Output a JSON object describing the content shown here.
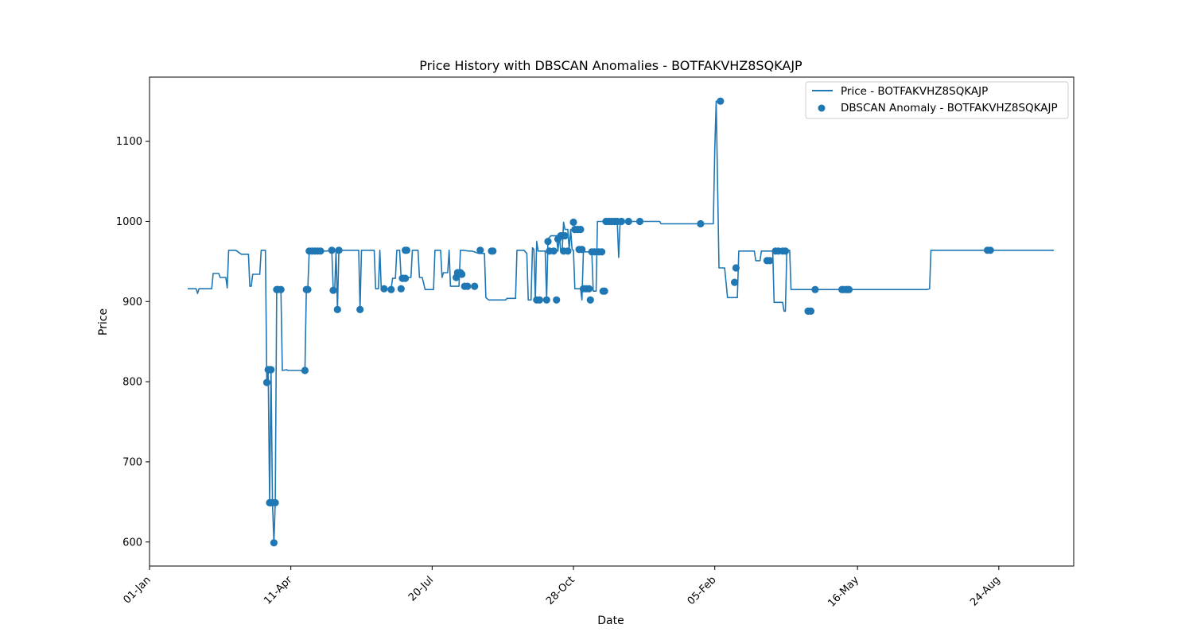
{
  "chart_data": {
    "type": "line",
    "title": "Price History with DBSCAN Anomalies - BOTFAKVHZ8SQKAJP",
    "xlabel": "Date",
    "ylabel": "Price",
    "x_axis_type": "date",
    "xlim": [
      "2023-01-01",
      "2024-10-16"
    ],
    "ylim": [
      570,
      1180
    ],
    "x_ticks": [
      {
        "date": "2023-01-01",
        "label": "01-Jan"
      },
      {
        "date": "2023-04-11",
        "label": "11-Apr"
      },
      {
        "date": "2023-07-20",
        "label": "20-Jul"
      },
      {
        "date": "2023-10-28",
        "label": "28-Oct"
      },
      {
        "date": "2024-02-05",
        "label": "05-Feb"
      },
      {
        "date": "2024-05-16",
        "label": "16-May"
      },
      {
        "date": "2024-08-24",
        "label": "24-Aug"
      }
    ],
    "y_ticks": [
      600,
      700,
      800,
      900,
      1000,
      1100
    ],
    "legend_position": "top-right",
    "grid": false,
    "colors": {
      "series": "#1f77b4"
    },
    "series": [
      {
        "name": "Price - BOTFAKVHZ8SQKAJP",
        "kind": "line",
        "points": [
          [
            "2023-01-28",
            916
          ],
          [
            "2023-02-03",
            916
          ],
          [
            "2023-02-04",
            910
          ],
          [
            "2023-02-05",
            916
          ],
          [
            "2023-02-14",
            916
          ],
          [
            "2023-02-15",
            935
          ],
          [
            "2023-02-19",
            935
          ],
          [
            "2023-02-20",
            930
          ],
          [
            "2023-02-24",
            930
          ],
          [
            "2023-02-25",
            917
          ],
          [
            "2023-02-26",
            964
          ],
          [
            "2023-03-03",
            964
          ],
          [
            "2023-03-07",
            959
          ],
          [
            "2023-03-12",
            959
          ],
          [
            "2023-03-13",
            919
          ],
          [
            "2023-03-14",
            919
          ],
          [
            "2023-03-15",
            934
          ],
          [
            "2023-03-20",
            934
          ],
          [
            "2023-03-21",
            964
          ],
          [
            "2023-03-24",
            964
          ],
          [
            "2023-03-25",
            799
          ],
          [
            "2023-03-26",
            815
          ],
          [
            "2023-03-27",
            649
          ],
          [
            "2023-03-28",
            815
          ],
          [
            "2023-03-29",
            649
          ],
          [
            "2023-03-30",
            599
          ],
          [
            "2023-03-31",
            649
          ],
          [
            "2023-04-01",
            915
          ],
          [
            "2023-04-04",
            915
          ],
          [
            "2023-04-05",
            814
          ],
          [
            "2023-04-08",
            815
          ],
          [
            "2023-04-09",
            814
          ],
          [
            "2023-04-15",
            814
          ],
          [
            "2023-04-18",
            814
          ],
          [
            "2023-04-19",
            813
          ],
          [
            "2023-04-21",
            814
          ],
          [
            "2023-04-22",
            915
          ],
          [
            "2023-04-23",
            915
          ],
          [
            "2023-04-24",
            963
          ],
          [
            "2023-04-30",
            963
          ],
          [
            "2023-05-06",
            963
          ],
          [
            "2023-05-10",
            964
          ],
          [
            "2023-05-11",
            914
          ],
          [
            "2023-05-12",
            914
          ],
          [
            "2023-05-13",
            964
          ],
          [
            "2023-05-14",
            890
          ],
          [
            "2023-05-15",
            964
          ],
          [
            "2023-05-29",
            964
          ],
          [
            "2023-05-30",
            890
          ],
          [
            "2023-05-31",
            964
          ],
          [
            "2023-06-09",
            964
          ],
          [
            "2023-06-10",
            916
          ],
          [
            "2023-06-12",
            916
          ],
          [
            "2023-06-13",
            964
          ],
          [
            "2023-06-14",
            915
          ],
          [
            "2023-06-21",
            916
          ],
          [
            "2023-06-22",
            929
          ],
          [
            "2023-06-24",
            929
          ],
          [
            "2023-06-25",
            964
          ],
          [
            "2023-06-27",
            964
          ],
          [
            "2023-06-28",
            930
          ],
          [
            "2023-07-05",
            930
          ],
          [
            "2023-07-06",
            964
          ],
          [
            "2023-07-10",
            964
          ],
          [
            "2023-07-11",
            930
          ],
          [
            "2023-07-13",
            930
          ],
          [
            "2023-07-15",
            915
          ],
          [
            "2023-07-21",
            915
          ],
          [
            "2023-07-22",
            964
          ],
          [
            "2023-07-26",
            964
          ],
          [
            "2023-07-27",
            930
          ],
          [
            "2023-07-28",
            936
          ],
          [
            "2023-07-31",
            936
          ],
          [
            "2023-08-01",
            964
          ],
          [
            "2023-08-02",
            919
          ],
          [
            "2023-08-05",
            919
          ],
          [
            "2023-08-08",
            919
          ],
          [
            "2023-08-09",
            964
          ],
          [
            "2023-08-11",
            964
          ],
          [
            "2023-08-15",
            963
          ],
          [
            "2023-08-17",
            963
          ],
          [
            "2023-08-22",
            960
          ],
          [
            "2023-08-26",
            960
          ],
          [
            "2023-08-27",
            905
          ],
          [
            "2023-08-29",
            902
          ],
          [
            "2023-09-10",
            902
          ],
          [
            "2023-09-11",
            904
          ],
          [
            "2023-09-17",
            904
          ],
          [
            "2023-09-18",
            964
          ],
          [
            "2023-09-23",
            964
          ],
          [
            "2023-09-25",
            960
          ],
          [
            "2023-09-26",
            902
          ],
          [
            "2023-09-28",
            902
          ],
          [
            "2023-09-29",
            967
          ],
          [
            "2023-09-30",
            965
          ],
          [
            "2023-10-01",
            902
          ],
          [
            "2023-10-02",
            975
          ],
          [
            "2023-10-03",
            963
          ],
          [
            "2023-10-08",
            963
          ],
          [
            "2023-10-09",
            902
          ],
          [
            "2023-10-10",
            978
          ],
          [
            "2023-10-12",
            982
          ],
          [
            "2023-10-16",
            982
          ],
          [
            "2023-10-17",
            963
          ],
          [
            "2023-10-18",
            982
          ],
          [
            "2023-10-19",
            963
          ],
          [
            "2023-10-20",
            963
          ],
          [
            "2023-10-21",
            999
          ],
          [
            "2023-10-22",
            990
          ],
          [
            "2023-10-24",
            990
          ],
          [
            "2023-10-25",
            965
          ],
          [
            "2023-10-26",
            990
          ],
          [
            "2023-10-27",
            965
          ],
          [
            "2023-10-28",
            964
          ],
          [
            "2023-10-29",
            916
          ],
          [
            "2023-11-02",
            916
          ],
          [
            "2023-11-03",
            902
          ],
          [
            "2023-11-04",
            962
          ],
          [
            "2023-11-05",
            962
          ],
          [
            "2023-11-10",
            962
          ],
          [
            "2023-11-11",
            913
          ],
          [
            "2023-11-13",
            913
          ],
          [
            "2023-11-14",
            1000
          ],
          [
            "2023-11-24",
            1000
          ],
          [
            "2023-11-25",
            1000
          ],
          [
            "2023-11-28",
            1000
          ],
          [
            "2023-11-29",
            955
          ],
          [
            "2023-11-30",
            1000
          ],
          [
            "2023-12-05",
            1000
          ],
          [
            "2023-12-28",
            1000
          ],
          [
            "2023-12-29",
            997
          ],
          [
            "2024-01-31",
            997
          ],
          [
            "2024-02-02",
            997
          ],
          [
            "2024-02-04",
            997
          ],
          [
            "2024-02-05",
            1090
          ],
          [
            "2024-02-06",
            1150
          ],
          [
            "2024-02-08",
            942
          ],
          [
            "2024-02-12",
            942
          ],
          [
            "2024-02-13",
            924
          ],
          [
            "2024-02-14",
            905
          ],
          [
            "2024-02-21",
            905
          ],
          [
            "2024-02-22",
            963
          ],
          [
            "2024-03-04",
            963
          ],
          [
            "2024-03-05",
            951
          ],
          [
            "2024-03-08",
            951
          ],
          [
            "2024-03-09",
            963
          ],
          [
            "2024-03-15",
            963
          ],
          [
            "2024-03-17",
            963
          ],
          [
            "2024-03-18",
            899
          ],
          [
            "2024-03-24",
            899
          ],
          [
            "2024-03-25",
            888
          ],
          [
            "2024-03-26",
            888
          ],
          [
            "2024-03-27",
            964
          ],
          [
            "2024-03-29",
            964
          ],
          [
            "2024-03-30",
            915
          ],
          [
            "2024-04-15",
            915
          ],
          [
            "2024-04-22",
            915
          ],
          [
            "2024-07-04",
            915
          ],
          [
            "2024-07-06",
            916
          ],
          [
            "2024-07-07",
            964
          ],
          [
            "2024-08-17",
            964
          ],
          [
            "2024-08-18",
            964
          ],
          [
            "2024-10-02",
            964
          ]
        ]
      },
      {
        "name": "DBSCAN Anomaly - BOTFAKVHZ8SQKAJP",
        "kind": "scatter",
        "points": [
          [
            "2023-03-25",
            799
          ],
          [
            "2023-03-26",
            815
          ],
          [
            "2023-03-27",
            815
          ],
          [
            "2023-03-28",
            815
          ],
          [
            "2023-03-27",
            649
          ],
          [
            "2023-03-28",
            649
          ],
          [
            "2023-03-29",
            649
          ],
          [
            "2023-03-30",
            599
          ],
          [
            "2023-03-31",
            649
          ],
          [
            "2023-04-01",
            915
          ],
          [
            "2023-04-02",
            915
          ],
          [
            "2023-04-04",
            915
          ],
          [
            "2023-04-21",
            814
          ],
          [
            "2023-04-22",
            915
          ],
          [
            "2023-04-23",
            915
          ],
          [
            "2023-04-24",
            963
          ],
          [
            "2023-04-26",
            963
          ],
          [
            "2023-04-28",
            963
          ],
          [
            "2023-04-30",
            963
          ],
          [
            "2023-05-02",
            963
          ],
          [
            "2023-05-10",
            964
          ],
          [
            "2023-05-11",
            914
          ],
          [
            "2023-05-14",
            890
          ],
          [
            "2023-05-15",
            964
          ],
          [
            "2023-05-30",
            890
          ],
          [
            "2023-06-16",
            916
          ],
          [
            "2023-06-21",
            915
          ],
          [
            "2023-06-28",
            916
          ],
          [
            "2023-06-29",
            929
          ],
          [
            "2023-07-01",
            929
          ],
          [
            "2023-07-01",
            964
          ],
          [
            "2023-07-02",
            964
          ],
          [
            "2023-08-06",
            930
          ],
          [
            "2023-08-07",
            936
          ],
          [
            "2023-08-09",
            936
          ],
          [
            "2023-08-10",
            934
          ],
          [
            "2023-08-12",
            919
          ],
          [
            "2023-08-14",
            919
          ],
          [
            "2023-08-19",
            919
          ],
          [
            "2023-08-23",
            964
          ],
          [
            "2023-08-31",
            963
          ],
          [
            "2023-09-01",
            963
          ],
          [
            "2023-10-02",
            902
          ],
          [
            "2023-10-04",
            902
          ],
          [
            "2023-10-09",
            902
          ],
          [
            "2023-10-10",
            975
          ],
          [
            "2023-10-11",
            963
          ],
          [
            "2023-10-14",
            963
          ],
          [
            "2023-10-16",
            902
          ],
          [
            "2023-10-17",
            978
          ],
          [
            "2023-10-19",
            982
          ],
          [
            "2023-10-20",
            982
          ],
          [
            "2023-10-21",
            963
          ],
          [
            "2023-10-22",
            982
          ],
          [
            "2023-10-24",
            963
          ],
          [
            "2023-10-28",
            999
          ],
          [
            "2023-10-29",
            990
          ],
          [
            "2023-10-31",
            990
          ],
          [
            "2023-11-02",
            990
          ],
          [
            "2023-11-01",
            965
          ],
          [
            "2023-11-03",
            965
          ],
          [
            "2023-11-04",
            916
          ],
          [
            "2023-11-06",
            916
          ],
          [
            "2023-11-08",
            916
          ],
          [
            "2023-11-09",
            902
          ],
          [
            "2023-11-10",
            962
          ],
          [
            "2023-11-12",
            962
          ],
          [
            "2023-11-15",
            962
          ],
          [
            "2023-11-17",
            962
          ],
          [
            "2023-11-18",
            913
          ],
          [
            "2023-11-19",
            913
          ],
          [
            "2023-11-20",
            1000
          ],
          [
            "2023-11-22",
            1000
          ],
          [
            "2023-11-24",
            1000
          ],
          [
            "2023-11-26",
            1000
          ],
          [
            "2023-11-28",
            1000
          ],
          [
            "2023-12-01",
            1000
          ],
          [
            "2023-12-06",
            1000
          ],
          [
            "2023-12-14",
            1000
          ],
          [
            "2024-01-26",
            997
          ],
          [
            "2024-02-09",
            1150
          ],
          [
            "2024-02-20",
            942
          ],
          [
            "2024-02-19",
            924
          ],
          [
            "2024-03-13",
            951
          ],
          [
            "2024-03-15",
            951
          ],
          [
            "2024-03-19",
            963
          ],
          [
            "2024-03-21",
            963
          ],
          [
            "2024-03-24",
            963
          ],
          [
            "2024-03-26",
            963
          ],
          [
            "2024-04-11",
            888
          ],
          [
            "2024-04-13",
            888
          ],
          [
            "2024-04-16",
            915
          ],
          [
            "2024-05-05",
            915
          ],
          [
            "2024-05-06",
            915
          ],
          [
            "2024-05-08",
            915
          ],
          [
            "2024-05-09",
            915
          ],
          [
            "2024-05-10",
            915
          ],
          [
            "2024-08-16",
            964
          ],
          [
            "2024-08-18",
            964
          ]
        ]
      }
    ]
  }
}
